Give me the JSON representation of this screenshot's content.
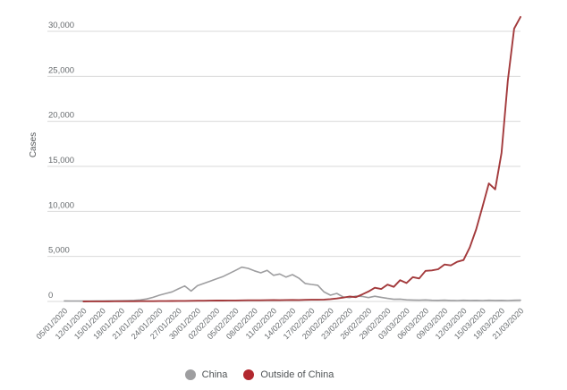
{
  "page": {
    "background": "#ffffff"
  },
  "axis": {
    "y_title": "Cases"
  },
  "legend": {
    "items": [
      {
        "label": "China",
        "color": "#9e9ea0"
      },
      {
        "label": "Outside of China",
        "color": "#b2282f"
      }
    ]
  },
  "chart_data": {
    "type": "line",
    "title": "",
    "xlabel": "",
    "ylabel": "Cases",
    "ylim": [
      0,
      30000
    ],
    "ytick_interval": 5000,
    "ytick_labels": [
      "0",
      "5,000",
      "10,000",
      "15,000",
      "20,000",
      "25,000",
      "30,000"
    ],
    "grid": "horizontal",
    "gridline_color": "#d9d9d9",
    "legend_position": "bottom-center",
    "xtick_every": 3,
    "xtick_labels": [
      "05/01/2020",
      "12/01/2020",
      "15/01/2020",
      "18/01/2020",
      "21/01/2020",
      "24/01/2020",
      "27/01/2020",
      "30/01/2020",
      "02/02/2020",
      "05/02/2020",
      "08/02/2020",
      "11/02/2020",
      "14/02/2020",
      "17/02/2020",
      "20/02/2020",
      "23/02/2020",
      "26/02/2020",
      "29/02/2020",
      "03/03/2020",
      "06/03/2020",
      "09/03/2020",
      "12/03/2020",
      "15/03/2020",
      "18/03/2020",
      "21/03/2020"
    ],
    "categories": [
      "05/01/2020",
      "08/01/2020",
      "10/01/2020",
      "12/01/2020",
      "13/01/2020",
      "14/01/2020",
      "15/01/2020",
      "16/01/2020",
      "17/01/2020",
      "18/01/2020",
      "19/01/2020",
      "20/01/2020",
      "21/01/2020",
      "22/01/2020",
      "23/01/2020",
      "24/01/2020",
      "25/01/2020",
      "26/01/2020",
      "27/01/2020",
      "28/01/2020",
      "29/01/2020",
      "30/01/2020",
      "31/01/2020",
      "01/02/2020",
      "02/02/2020",
      "03/02/2020",
      "04/02/2020",
      "05/02/2020",
      "06/02/2020",
      "07/02/2020",
      "08/02/2020",
      "09/02/2020",
      "10/02/2020",
      "11/02/2020",
      "12/02/2020",
      "13/02/2020",
      "14/02/2020",
      "15/02/2020",
      "16/02/2020",
      "17/02/2020",
      "18/02/2020",
      "19/02/2020",
      "20/02/2020",
      "21/02/2020",
      "22/02/2020",
      "23/02/2020",
      "24/02/2020",
      "25/02/2020",
      "26/02/2020",
      "27/02/2020",
      "28/02/2020",
      "29/02/2020",
      "01/03/2020",
      "02/03/2020",
      "03/03/2020",
      "04/03/2020",
      "05/03/2020",
      "06/03/2020",
      "07/03/2020",
      "08/03/2020",
      "09/03/2020",
      "10/03/2020",
      "11/03/2020",
      "12/03/2020",
      "13/03/2020",
      "14/03/2020",
      "15/03/2020",
      "16/03/2020",
      "17/03/2020",
      "18/03/2020",
      "19/03/2020",
      "20/03/2020",
      "21/03/2020"
    ],
    "series": [
      {
        "name": "China",
        "color": "#9e9ea0",
        "stroke_width": 1.6,
        "values": [
          60,
          45,
          50,
          40,
          45,
          55,
          60,
          70,
          65,
          80,
          95,
          120,
          170,
          280,
          460,
          700,
          880,
          1060,
          1400,
          1720,
          1150,
          1750,
          2000,
          2250,
          2500,
          2750,
          3100,
          3450,
          3800,
          3680,
          3400,
          3180,
          3460,
          2900,
          3050,
          2700,
          2980,
          2590,
          2000,
          1890,
          1800,
          1050,
          700,
          890,
          500,
          430,
          600,
          560,
          430,
          580,
          460,
          340,
          240,
          260,
          180,
          160,
          140,
          170,
          130,
          120,
          140,
          110,
          100,
          130,
          110,
          120,
          100,
          130,
          110,
          120,
          100,
          130,
          140
        ]
      },
      {
        "name": "Outside of China",
        "color": "#a33a3c",
        "stroke_width": 1.9,
        "values": [
          null,
          null,
          null,
          0,
          5,
          5,
          10,
          10,
          15,
          15,
          20,
          20,
          25,
          30,
          30,
          35,
          40,
          50,
          55,
          60,
          70,
          75,
          80,
          90,
          95,
          100,
          110,
          105,
          115,
          125,
          130,
          125,
          140,
          145,
          140,
          155,
          165,
          160,
          180,
          190,
          185,
          205,
          260,
          330,
          430,
          550,
          480,
          770,
          1100,
          1520,
          1380,
          1870,
          1620,
          2360,
          2050,
          2700,
          2550,
          3400,
          3450,
          3580,
          4100,
          4000,
          4400,
          4600,
          6000,
          8000,
          10500,
          13100,
          12450,
          16500,
          24500,
          30300,
          31600
        ]
      }
    ]
  }
}
